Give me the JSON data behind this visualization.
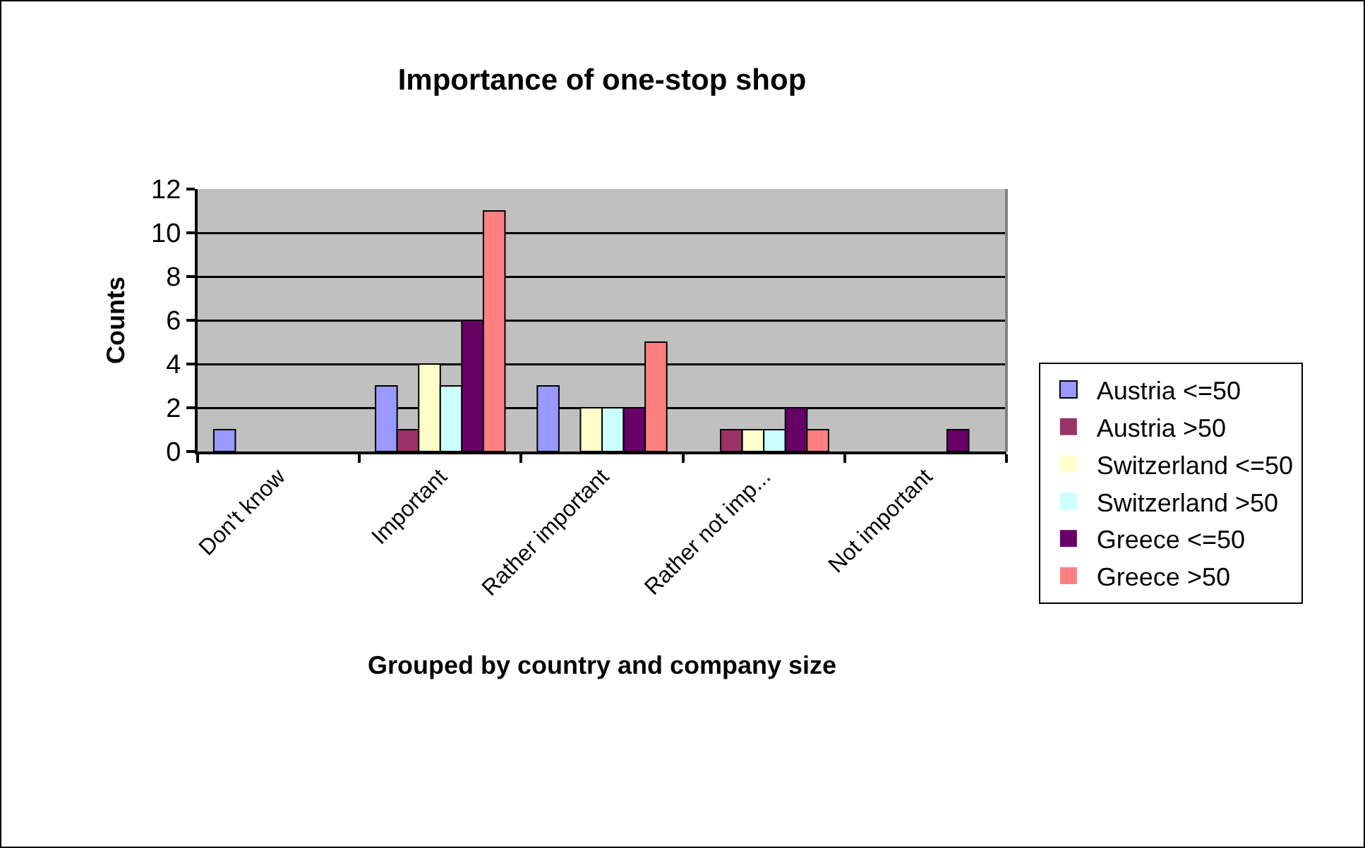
{
  "chart_data": {
    "type": "bar",
    "title": "Importance of one-stop shop",
    "xlabel": "Grouped by country and company size",
    "ylabel": "Counts",
    "categories": [
      "Don't know",
      "Important",
      "Rather important",
      "Rather not imp...",
      "Not important"
    ],
    "series": [
      {
        "name": "Austria <=50",
        "color": "#9999ff",
        "values": [
          1,
          3,
          3,
          0,
          0
        ]
      },
      {
        "name": "Austria >50",
        "color": "#993366",
        "values": [
          0,
          1,
          0,
          1,
          0
        ]
      },
      {
        "name": "Switzerland <=50",
        "color": "#ffffcc",
        "values": [
          0,
          4,
          2,
          1,
          0
        ]
      },
      {
        "name": "Switzerland >50",
        "color": "#ccffff",
        "values": [
          0,
          3,
          2,
          1,
          0
        ]
      },
      {
        "name": "Greece <=50",
        "color": "#660066",
        "values": [
          0,
          6,
          2,
          2,
          1
        ]
      },
      {
        "name": "Greece >50",
        "color": "#ff8080",
        "values": [
          0,
          11,
          5,
          1,
          0
        ]
      }
    ],
    "ylim": [
      0,
      12
    ],
    "yticks": [
      0,
      2,
      4,
      6,
      8,
      10,
      12
    ],
    "grid": "y",
    "legend": "right"
  }
}
